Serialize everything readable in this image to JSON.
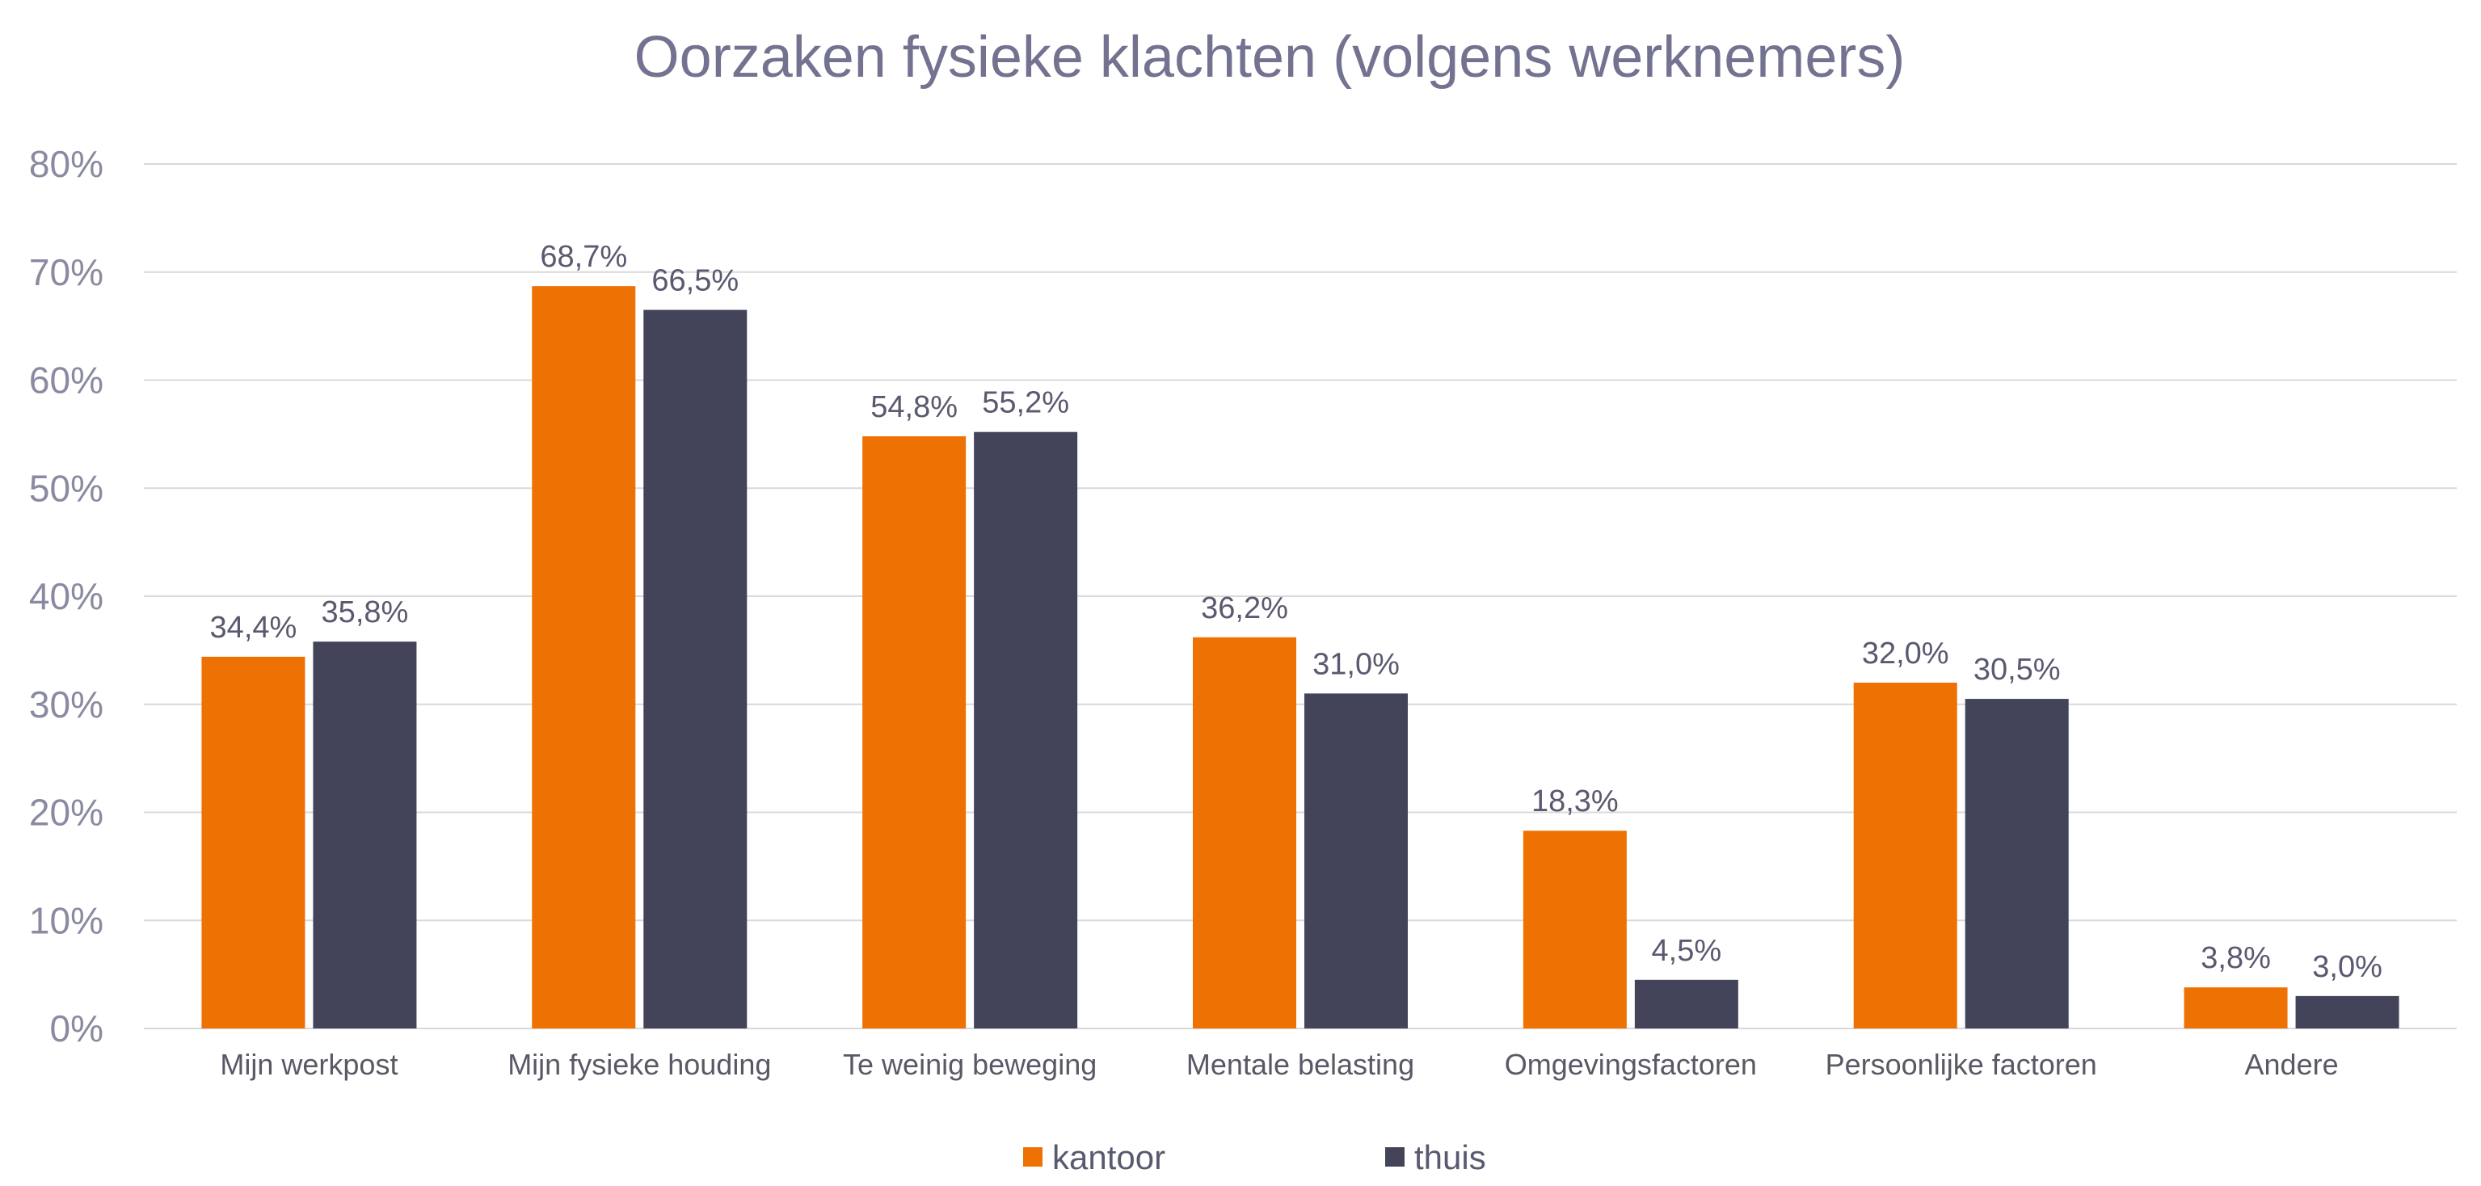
{
  "chart_data": {
    "type": "bar",
    "title": "Oorzaken fysieke klachten (volgens werknemers)",
    "categories": [
      "Mijn werkpost",
      "Mijn fysieke houding",
      "Te weinig beweging",
      "Mentale belasting",
      "Omgevingsfactoren",
      "Persoonlijke factoren",
      "Andere"
    ],
    "series": [
      {
        "name": "kantoor",
        "color": "#ee7203",
        "values": [
          34.4,
          68.7,
          54.8,
          36.2,
          18.3,
          32.0,
          3.8
        ],
        "labels": [
          "34,4%",
          "68,7%",
          "54,8%",
          "36,2%",
          "18,3%",
          "32,0%",
          "3,8%"
        ]
      },
      {
        "name": "thuis",
        "color": "#43435a",
        "values": [
          35.8,
          66.5,
          55.2,
          31.0,
          4.5,
          30.5,
          3.0
        ],
        "labels": [
          "35,8%",
          "66,5%",
          "55,2%",
          "31,0%",
          "4,5%",
          "30,5%",
          "3,0%"
        ]
      }
    ],
    "yticks": [
      "0%",
      "10%",
      "20%",
      "30%",
      "40%",
      "50%",
      "60%",
      "70%",
      "80%"
    ],
    "ylim": [
      0,
      80
    ],
    "xlabel": "",
    "ylabel": "",
    "grid": true,
    "legend_position": "bottom"
  }
}
